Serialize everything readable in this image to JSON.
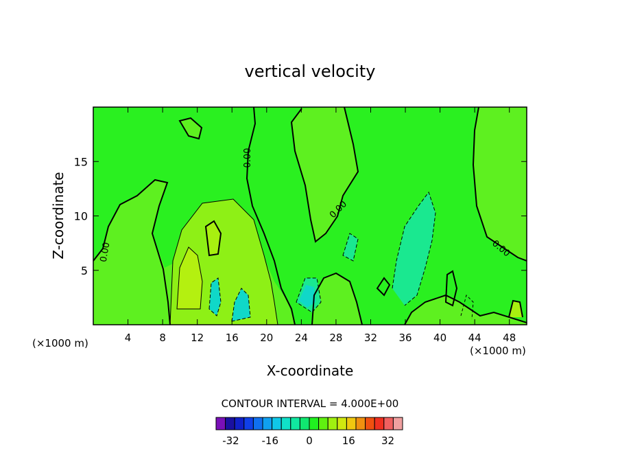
{
  "chart_data": {
    "type": "contour",
    "title": "vertical velocity",
    "xlabel": "X-coordinate",
    "ylabel": "Z-coordinate",
    "x_unit_label_left": "(×1000 m)",
    "x_unit_label_right": "(×1000 m)",
    "xlim": [
      0,
      50
    ],
    "ylim": [
      0,
      20
    ],
    "xticks": [
      4,
      8,
      12,
      16,
      20,
      24,
      28,
      32,
      36,
      40,
      44,
      48
    ],
    "yticks": [
      5,
      10,
      15
    ],
    "contour_interval_text": "CONTOUR INTERVAL = 4.000E+00",
    "zero_contour_label": "0.00",
    "colorbar": {
      "levels": [
        -36,
        -32,
        -28,
        -24,
        -20,
        -16,
        -12,
        -8,
        -4,
        0,
        4,
        8,
        12,
        16,
        20,
        24,
        28,
        32,
        36
      ],
      "tick_labels": [
        "-32",
        "-16",
        "0",
        "16",
        "32"
      ],
      "tick_values": [
        -32,
        -16,
        0,
        16,
        32
      ],
      "colors": [
        "#7a10b8",
        "#1a10a0",
        "#1020c8",
        "#1040e8",
        "#1070f0",
        "#10a0f0",
        "#10c8e8",
        "#10e0c8",
        "#10e8a0",
        "#10e870",
        "#20f020",
        "#60f010",
        "#a0f010",
        "#d0e810",
        "#f0c810",
        "#f09010",
        "#f05010",
        "#f03020",
        "#f06060",
        "#f0a0a0"
      ]
    },
    "background_color": "#2af020"
  }
}
